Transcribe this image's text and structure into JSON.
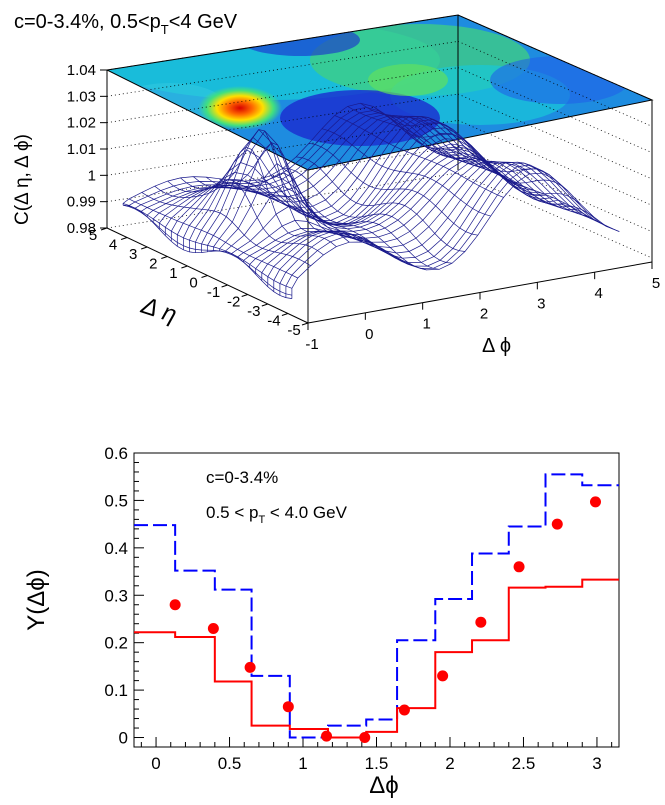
{
  "colors": {
    "points": "#ff0000",
    "solid_hist": "#ff0000",
    "dashed_hist": "#0000ff",
    "mesh": "#1a1a8c",
    "axis": "#000000"
  },
  "chart_data": [
    {
      "type": "surface",
      "panel": "top",
      "title": "c=0-3.4%, 0.5<p",
      "title_sub": "T",
      "title_tail": "<4 GeV",
      "zlabel": "C(Δ η, Δ ϕ)",
      "xlabel": "Δ ϕ",
      "ylabel": "Δ η",
      "x_ticks": [
        "-1",
        "0",
        "1",
        "2",
        "3",
        "4",
        "5"
      ],
      "y_ticks": [
        "5",
        "4",
        "3",
        "2",
        "1",
        "0",
        "-1",
        "-2",
        "-3",
        "-4",
        "-5"
      ],
      "z_ticks": [
        "1.04",
        "1.03",
        "1.02",
        "1.01",
        "1",
        "0.99",
        "0.98"
      ],
      "xlim": [
        -1,
        5
      ],
      "ylim": [
        -5,
        5
      ],
      "zlim": [
        0.98,
        1.04
      ],
      "features": "near-side peak at Δϕ≈0, Δη≈0 (~1.025); away-side ridge near Δϕ≈π; projected color contour map on top"
    },
    {
      "type": "line",
      "panel": "bottom",
      "ylabel": "Y(Δϕ)",
      "xlabel": "Δϕ",
      "annotation_1": "c=0-3.4%",
      "annotation_2_pre": "0.5 < p",
      "annotation_2_sub": "T",
      "annotation_2_post": " < 4.0 GeV",
      "xlim": [
        -0.15,
        3.15
      ],
      "ylim": [
        -0.02,
        0.6
      ],
      "x_ticks": [
        0,
        0.5,
        1,
        1.5,
        2,
        2.5,
        3
      ],
      "x_tick_labels": [
        "0",
        "0.5",
        "1",
        "1.5",
        "2",
        "2.5",
        "3"
      ],
      "y_ticks": [
        0,
        0.1,
        0.2,
        0.3,
        0.4,
        0.5,
        0.6
      ],
      "y_tick_labels": [
        "0",
        "0.1",
        "0.2",
        "0.3",
        "0.4",
        "0.5",
        "0.6"
      ],
      "bin_edges": [
        -0.15,
        0.13,
        0.4,
        0.65,
        0.91,
        1.17,
        1.43,
        1.64,
        1.9,
        2.15,
        2.4,
        2.65,
        2.9,
        3.15
      ],
      "series": [
        {
          "style": "points",
          "x": [
            0.13,
            0.39,
            0.64,
            0.9,
            1.16,
            1.42,
            1.69,
            1.95,
            2.21,
            2.47,
            2.73,
            2.99
          ],
          "values": [
            0.28,
            0.23,
            0.148,
            0.065,
            0.003,
            0.0,
            0.058,
            0.13,
            0.243,
            0.36,
            0.45,
            0.497
          ]
        },
        {
          "style": "solid-step",
          "values": [
            0.222,
            0.212,
            0.118,
            0.025,
            0.018,
            0.0,
            0.012,
            0.062,
            0.18,
            0.205,
            0.316,
            0.318,
            0.333
          ]
        },
        {
          "style": "dashed-step",
          "values": [
            0.448,
            0.352,
            0.312,
            0.13,
            0.0,
            0.025,
            0.038,
            0.205,
            0.292,
            0.388,
            0.445,
            0.555,
            0.532
          ]
        }
      ]
    }
  ]
}
